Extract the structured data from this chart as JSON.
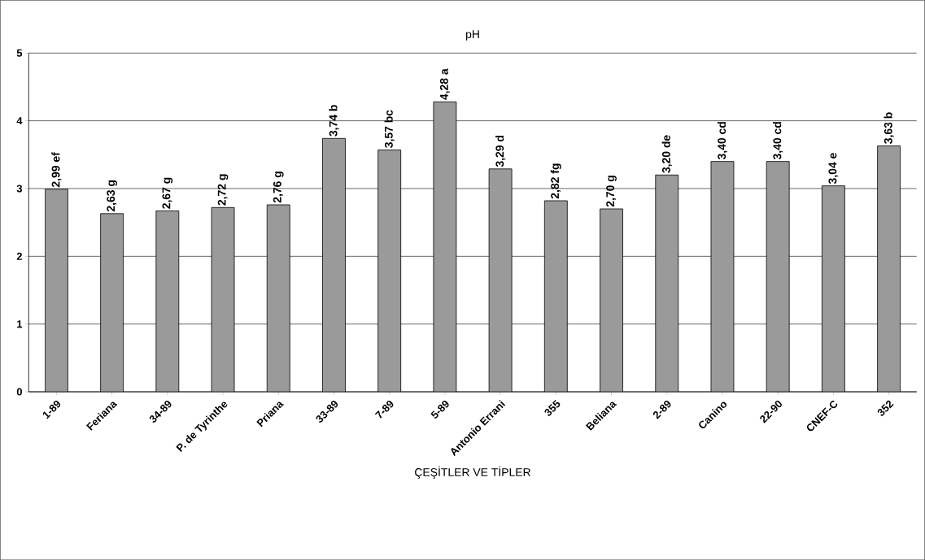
{
  "chart_data": {
    "type": "bar",
    "title": "pH",
    "xlabel": "ÇEŞİTLER VE TİPLER",
    "categories": [
      "1-89",
      "Feriana",
      "34-89",
      "P. de Tyrinthe",
      "Priana",
      "33-89",
      "7-89",
      "5-89",
      "Antonio Errani",
      "355",
      "Beliana",
      "2-89",
      "Canino",
      "22-90",
      "CNEF-C",
      "352"
    ],
    "values": [
      2.99,
      2.63,
      2.67,
      2.72,
      2.76,
      3.74,
      3.57,
      4.28,
      3.29,
      2.82,
      2.7,
      3.2,
      3.4,
      3.4,
      3.04,
      3.63
    ],
    "value_labels": [
      "2,99 ef",
      "2,63 g",
      "2,67 g",
      "2,72 g",
      "2,76 g",
      "3,74 b",
      "3,57 bc",
      "4,28 a",
      "3,29 d",
      "2,82 fg",
      "2,70 g",
      "3,20 de",
      "3,40 cd",
      "3,40 cd",
      "3,04 e",
      "3,63 b"
    ],
    "color": "#9a9a9a",
    "ylim": [
      0,
      5
    ],
    "yticks": [
      0,
      1,
      2,
      3,
      4,
      5
    ],
    "grid": "y"
  }
}
